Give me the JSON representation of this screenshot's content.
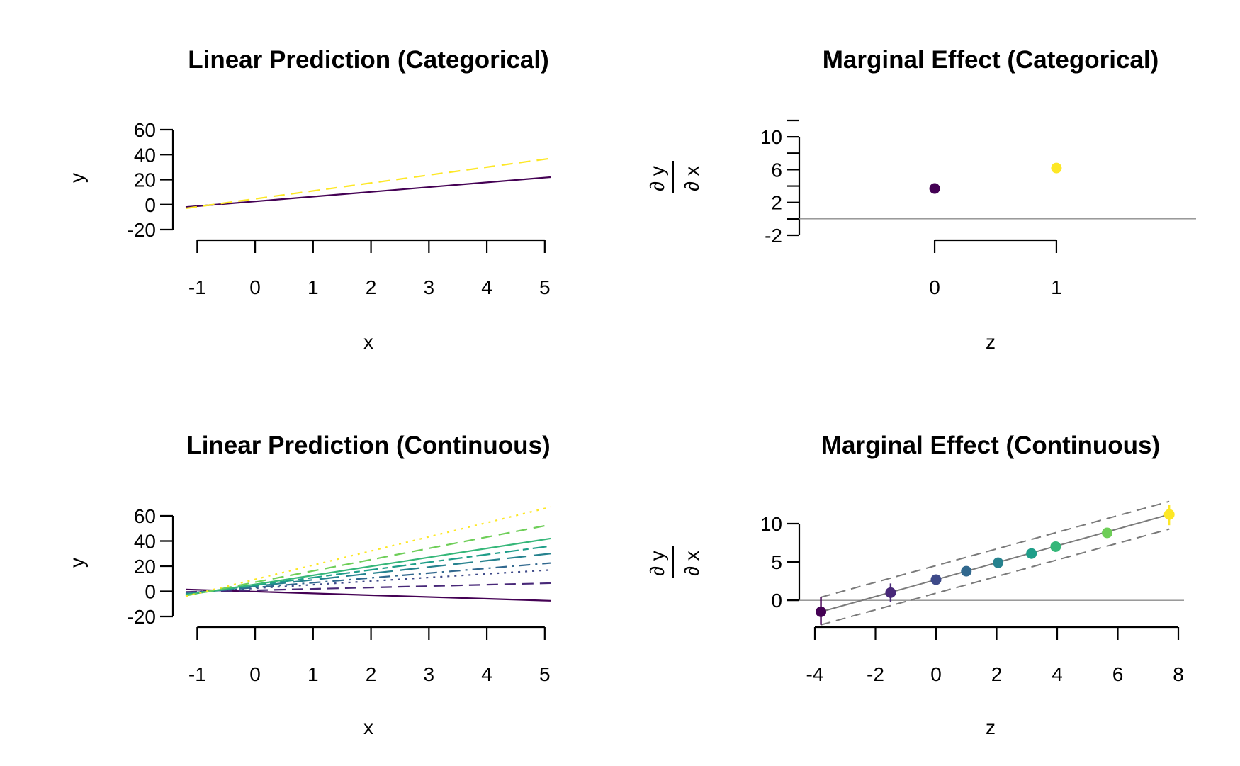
{
  "chart_data": [
    {
      "type": "line",
      "title": "Linear Prediction (Categorical)",
      "xlabel": "x",
      "ylabel": "y",
      "xlim": [
        -1.2,
        5.1
      ],
      "ylim": [
        -20,
        60
      ],
      "xticks": [
        -1,
        0,
        1,
        2,
        3,
        4,
        5
      ],
      "yticks": [
        -20,
        0,
        20,
        40,
        60
      ],
      "series": [
        {
          "x": [
            -1.2,
            5.1
          ],
          "y": [
            -2,
            22
          ],
          "color": "#440154",
          "dash": "solid"
        },
        {
          "x": [
            -1.2,
            5.1
          ],
          "y": [
            -3,
            37
          ],
          "color": "#fde725",
          "dash": "dashed"
        }
      ]
    },
    {
      "type": "scatter",
      "title": "Marginal Effect (Categorical)",
      "xlabel": "z",
      "ylabel_num": "∂ y",
      "ylabel_den": "∂ x",
      "xlim": [
        -1.1,
        2.1
      ],
      "ylim": [
        -2,
        12
      ],
      "xticks": [
        0,
        1
      ],
      "yticks": [
        -2,
        2,
        6,
        10
      ],
      "yminor": [
        0,
        4,
        8,
        12
      ],
      "refline": 0,
      "points": [
        {
          "x": 0,
          "y": 3.7,
          "lo": 3.3,
          "hi": 4.1,
          "color": "#440154"
        },
        {
          "x": 1,
          "y": 6.2,
          "lo": 5.8,
          "hi": 6.6,
          "color": "#fde725"
        }
      ]
    },
    {
      "type": "line",
      "title": "Linear Prediction (Continuous)",
      "xlabel": "x",
      "ylabel": "y",
      "xlim": [
        -1.2,
        5.1
      ],
      "ylim": [
        -20,
        60
      ],
      "xticks": [
        -1,
        0,
        1,
        2,
        3,
        4,
        5
      ],
      "yticks": [
        -20,
        0,
        20,
        40,
        60
      ],
      "series": [
        {
          "x": [
            -1.2,
            5.1
          ],
          "y": [
            1.5,
            -7.5
          ],
          "color": "#440154",
          "dash": "solid"
        },
        {
          "x": [
            -1.2,
            5.1
          ],
          "y": [
            -0.5,
            6.5
          ],
          "color": "#482878",
          "dash": "dashed"
        },
        {
          "x": [
            -1.2,
            5.1
          ],
          "y": [
            -1.0,
            17
          ],
          "color": "#3e4a89",
          "dash": "dotted"
        },
        {
          "x": [
            -1.2,
            5.1
          ],
          "y": [
            -1.5,
            22.5
          ],
          "color": "#31688e",
          "dash": "dotdash"
        },
        {
          "x": [
            -1.2,
            5.1
          ],
          "y": [
            -2.0,
            30
          ],
          "color": "#26828e",
          "dash": "longdash"
        },
        {
          "x": [
            -1.2,
            5.1
          ],
          "y": [
            -2.5,
            36
          ],
          "color": "#1f9e89",
          "dash": "twodash"
        },
        {
          "x": [
            -1.2,
            5.1
          ],
          "y": [
            -3.0,
            42
          ],
          "color": "#35b779",
          "dash": "solid"
        },
        {
          "x": [
            -1.2,
            5.1
          ],
          "y": [
            -3.5,
            53
          ],
          "color": "#6ece58",
          "dash": "dashed"
        },
        {
          "x": [
            -1.2,
            5.1
          ],
          "y": [
            -4.0,
            67
          ],
          "color": "#fde725",
          "dash": "dotted"
        }
      ]
    },
    {
      "type": "scatter",
      "title": "Marginal Effect (Continuous)",
      "xlabel": "z",
      "ylabel_num": "∂ y",
      "ylabel_den": "∂ x",
      "xlim": [
        -4,
        8
      ],
      "ylim": [
        -3.5,
        12.5
      ],
      "xticks": [
        -4,
        -2,
        0,
        2,
        4,
        6,
        8
      ],
      "yticks": [
        0,
        5,
        10
      ],
      "refline": 0,
      "fit": {
        "x": [
          -3.8,
          7.7
        ],
        "y": [
          -1.5,
          11.2
        ]
      },
      "ci_upper": {
        "x": [
          -3.8,
          7.7
        ],
        "y": [
          0.4,
          12.9
        ]
      },
      "ci_lower": {
        "x": [
          -3.8,
          7.7
        ],
        "y": [
          -3.2,
          9.3
        ]
      },
      "points": [
        {
          "x": -3.8,
          "y": -1.5,
          "lo": -3.2,
          "hi": 0.4,
          "color": "#440154"
        },
        {
          "x": -1.5,
          "y": 1.0,
          "lo": -0.2,
          "hi": 2.2,
          "color": "#482878"
        },
        {
          "x": 0.0,
          "y": 2.7,
          "lo": 2.2,
          "hi": 3.3,
          "color": "#3e4a89"
        },
        {
          "x": 1.0,
          "y": 3.8,
          "lo": 3.4,
          "hi": 4.2,
          "color": "#31688e"
        },
        {
          "x": 2.05,
          "y": 4.9,
          "lo": 4.6,
          "hi": 5.2,
          "color": "#26828e"
        },
        {
          "x": 3.15,
          "y": 6.1,
          "lo": 5.8,
          "hi": 6.5,
          "color": "#1f9e89"
        },
        {
          "x": 3.95,
          "y": 7.0,
          "lo": 6.6,
          "hi": 7.4,
          "color": "#35b779"
        },
        {
          "x": 5.65,
          "y": 8.8,
          "lo": 8.2,
          "hi": 9.4,
          "color": "#6ece58"
        },
        {
          "x": 7.7,
          "y": 11.2,
          "lo": 9.8,
          "hi": 12.5,
          "color": "#fde725"
        }
      ]
    }
  ]
}
